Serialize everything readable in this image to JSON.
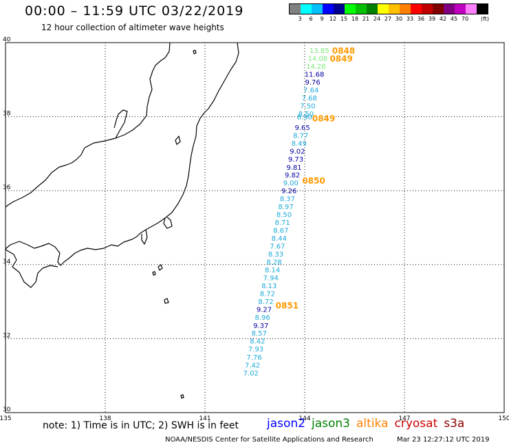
{
  "header": {
    "title": "00:00 – 11:59 UTC 03/22/2019",
    "subtitle": "12 hour collection of altimeter wave heights"
  },
  "legend": {
    "unit": "(ft)",
    "bins": [
      {
        "label": "",
        "color": "#808080"
      },
      {
        "label": "3",
        "color": "#00ffff"
      },
      {
        "label": "6",
        "color": "#00c0ff"
      },
      {
        "label": "9",
        "color": "#0000ff"
      },
      {
        "label": "12",
        "color": "#000090"
      },
      {
        "label": "15",
        "color": "#00ff00"
      },
      {
        "label": "18",
        "color": "#00c000"
      },
      {
        "label": "21",
        "color": "#008000"
      },
      {
        "label": "24",
        "color": "#ffff00"
      },
      {
        "label": "27",
        "color": "#ffc000"
      },
      {
        "label": "30",
        "color": "#ff8000"
      },
      {
        "label": "33",
        "color": "#ff0000"
      },
      {
        "label": "36",
        "color": "#c00000"
      },
      {
        "label": "39",
        "color": "#800000"
      },
      {
        "label": "42",
        "color": "#800080"
      },
      {
        "label": "45",
        "color": "#c000c0"
      },
      {
        "label": "70",
        "color": "#ff80ff"
      },
      {
        "label": "",
        "color": "#000000"
      }
    ]
  },
  "axes": {
    "lon_ticks": [
      "135",
      "138",
      "141",
      "144",
      "147",
      "150"
    ],
    "lat_ticks": [
      "40",
      "38",
      "36",
      "34",
      "32",
      "30"
    ],
    "lon_range": [
      135,
      150
    ],
    "lat_range": [
      30,
      40
    ],
    "grid": true
  },
  "observations": [
    {
      "lat": 39.795,
      "lon": 144.44,
      "value": "13.85",
      "color": "#7de87d"
    },
    {
      "lat": 39.58,
      "lon": 144.39,
      "value": "14.08",
      "color": "#7de87d"
    },
    {
      "lat": 39.365,
      "lon": 144.34,
      "value": "14.28",
      "color": "#7de87d"
    },
    {
      "lat": 39.155,
      "lon": 144.29,
      "value": "11.68",
      "color": "#0000a0"
    },
    {
      "lat": 38.94,
      "lon": 144.24,
      "value": "9.76",
      "color": "#0000a0"
    },
    {
      "lat": 38.725,
      "lon": 144.19,
      "value": "7.64",
      "color": "#1aaad8"
    },
    {
      "lat": 38.51,
      "lon": 144.14,
      "value": "7.68",
      "color": "#1aaad8"
    },
    {
      "lat": 38.295,
      "lon": 144.09,
      "value": "7.50",
      "color": "#1aaad8"
    },
    {
      "lat": 38.09,
      "lon": 144.04,
      "value": "8.50",
      "color": "#1aaad8"
    },
    {
      "lat": 38.0,
      "lon": 144.0,
      "value": "8.90",
      "color": "#1aaad8"
    },
    {
      "lat": 37.71,
      "lon": 143.93,
      "value": "9.65",
      "color": "#0000a0"
    },
    {
      "lat": 37.5,
      "lon": 143.88,
      "value": "8.77",
      "color": "#1aaad8"
    },
    {
      "lat": 37.285,
      "lon": 143.83,
      "value": "8.49",
      "color": "#1aaad8"
    },
    {
      "lat": 37.075,
      "lon": 143.78,
      "value": "9.02",
      "color": "#0000a0"
    },
    {
      "lat": 36.86,
      "lon": 143.73,
      "value": "9.73",
      "color": "#0000a0"
    },
    {
      "lat": 36.64,
      "lon": 143.68,
      "value": "9.81",
      "color": "#0000a0"
    },
    {
      "lat": 36.435,
      "lon": 143.63,
      "value": "9.82",
      "color": "#0000a0"
    },
    {
      "lat": 36.22,
      "lon": 143.58,
      "value": "9.00",
      "color": "#1aaad8"
    },
    {
      "lat": 36.005,
      "lon": 143.53,
      "value": "9.26",
      "color": "#0000a0"
    },
    {
      "lat": 35.79,
      "lon": 143.48,
      "value": "8.37",
      "color": "#1aaad8"
    },
    {
      "lat": 35.575,
      "lon": 143.43,
      "value": "8.97",
      "color": "#1aaad8"
    },
    {
      "lat": 35.365,
      "lon": 143.38,
      "value": "8.50",
      "color": "#1aaad8"
    },
    {
      "lat": 35.15,
      "lon": 143.33,
      "value": "8.71",
      "color": "#1aaad8"
    },
    {
      "lat": 34.935,
      "lon": 143.28,
      "value": "8.67",
      "color": "#1aaad8"
    },
    {
      "lat": 34.72,
      "lon": 143.23,
      "value": "8.44",
      "color": "#1aaad8"
    },
    {
      "lat": 34.505,
      "lon": 143.18,
      "value": "7.67",
      "color": "#1aaad8"
    },
    {
      "lat": 34.295,
      "lon": 143.13,
      "value": "8.33",
      "color": "#1aaad8"
    },
    {
      "lat": 34.08,
      "lon": 143.08,
      "value": "8.28",
      "color": "#1aaad8"
    },
    {
      "lat": 33.865,
      "lon": 143.03,
      "value": "8.14",
      "color": "#1aaad8"
    },
    {
      "lat": 33.65,
      "lon": 142.98,
      "value": "7.94",
      "color": "#1aaad8"
    },
    {
      "lat": 33.435,
      "lon": 142.93,
      "value": "8.13",
      "color": "#1aaad8"
    },
    {
      "lat": 33.225,
      "lon": 142.88,
      "value": "8.72",
      "color": "#1aaad8"
    },
    {
      "lat": 33.01,
      "lon": 142.83,
      "value": "8.72",
      "color": "#1aaad8"
    },
    {
      "lat": 32.795,
      "lon": 142.78,
      "value": "9.27",
      "color": "#0000a0"
    },
    {
      "lat": 32.58,
      "lon": 142.73,
      "value": "8.96",
      "color": "#1aaad8"
    },
    {
      "lat": 32.365,
      "lon": 142.68,
      "value": "9.37",
      "color": "#0000a0"
    },
    {
      "lat": 32.155,
      "lon": 142.63,
      "value": "8.57",
      "color": "#1aaad8"
    },
    {
      "lat": 31.94,
      "lon": 142.58,
      "value": "8.42",
      "color": "#1aaad8"
    },
    {
      "lat": 31.725,
      "lon": 142.53,
      "value": "7.93",
      "color": "#1aaad8"
    },
    {
      "lat": 31.51,
      "lon": 142.48,
      "value": "7.76",
      "color": "#1aaad8"
    },
    {
      "lat": 31.295,
      "lon": 142.43,
      "value": "7.42",
      "color": "#1aaad8"
    },
    {
      "lat": 31.08,
      "lon": 142.38,
      "value": "7.02",
      "color": "#1aaad8"
    }
  ],
  "time_labels": [
    {
      "lat": 39.795,
      "lon": 145.17,
      "text": "0848"
    },
    {
      "lat": 39.58,
      "lon": 145.1,
      "text": "0849"
    },
    {
      "lat": 37.965,
      "lon": 144.57,
      "text": "0849"
    },
    {
      "lat": 36.285,
      "lon": 144.27,
      "text": "0850"
    },
    {
      "lat": 32.905,
      "lon": 143.47,
      "text": "0851"
    }
  ],
  "time_color": "#ff9a00",
  "note": "note: 1) Time is in UTC; 2) SWH is in feet",
  "satellites": [
    {
      "name": "jason2",
      "color": "#0000ff"
    },
    {
      "name": "jason3",
      "color": "#008000"
    },
    {
      "name": "altika",
      "color": "#ff8000"
    },
    {
      "name": "cryosat",
      "color": "#cc0000"
    },
    {
      "name": "s3a",
      "color": "#8b0000"
    }
  ],
  "footer": {
    "left": "NOAA/NESDIS Center for Satellite Applications and Research",
    "right": "Mar 23 12:27:12 UTC 2019"
  }
}
